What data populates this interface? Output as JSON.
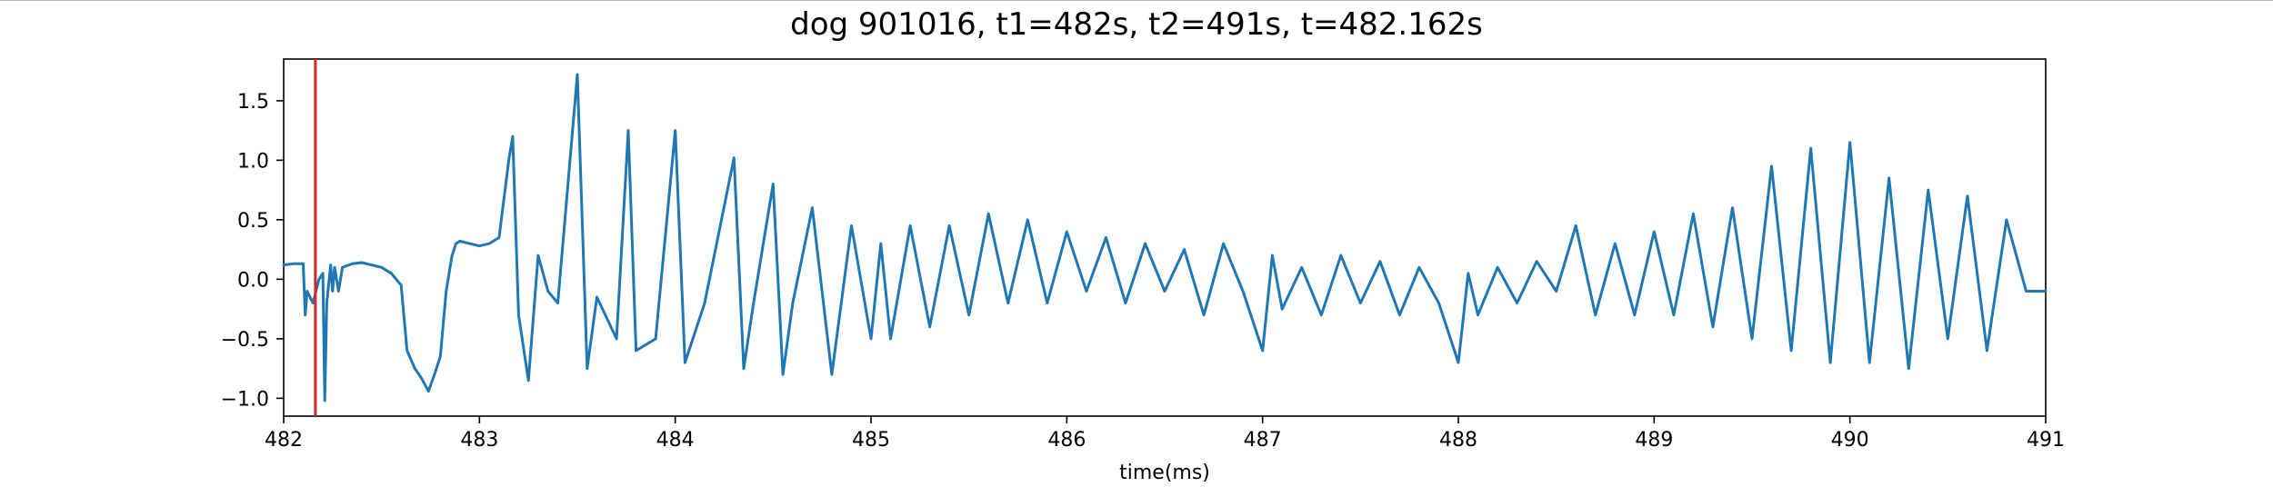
{
  "chart_data": {
    "type": "line",
    "title": "dog 901016, t1=482s, t2=491s, t=482.162s",
    "xlabel": "time(ms)",
    "ylabel": "",
    "xlim": [
      482,
      491
    ],
    "ylim": [
      -1.15,
      1.85
    ],
    "grid": false,
    "x_ticks": [
      482,
      483,
      484,
      485,
      486,
      487,
      488,
      489,
      490,
      491
    ],
    "y_ticks": [
      -1.0,
      -0.5,
      0.0,
      0.5,
      1.0,
      1.5
    ],
    "x_tick_labels": [
      "482",
      "483",
      "484",
      "485",
      "486",
      "487",
      "488",
      "489",
      "490",
      "491"
    ],
    "y_tick_labels": [
      "−1.0",
      "−0.5",
      "0.0",
      "0.5",
      "1.0",
      "1.5"
    ],
    "marker_line": {
      "x": 482.162,
      "color": "#d62728"
    },
    "series": [
      {
        "color": "#1f77b4",
        "x": [
          482.0,
          482.05,
          482.1,
          482.11,
          482.12,
          482.15,
          482.18,
          482.2,
          482.21,
          482.22,
          482.24,
          482.25,
          482.26,
          482.28,
          482.3,
          482.35,
          482.4,
          482.5,
          482.55,
          482.6,
          482.63,
          482.67,
          482.7,
          482.74,
          482.77,
          482.8,
          482.83,
          482.86,
          482.88,
          482.9,
          482.95,
          483.0,
          483.05,
          483.1,
          483.15,
          483.17,
          483.2,
          483.25,
          483.3,
          483.35,
          483.4,
          483.5,
          483.55,
          483.6,
          483.7,
          483.76,
          483.8,
          483.9,
          484.0,
          484.05,
          484.15,
          484.3,
          484.35,
          484.4,
          484.5,
          484.55,
          484.6,
          484.7,
          484.8,
          484.9,
          485.0,
          485.05,
          485.1,
          485.2,
          485.3,
          485.4,
          485.5,
          485.6,
          485.7,
          485.8,
          485.9,
          486.0,
          486.1,
          486.2,
          486.3,
          486.4,
          486.5,
          486.6,
          486.7,
          486.8,
          486.9,
          487.0,
          487.05,
          487.1,
          487.2,
          487.3,
          487.4,
          487.5,
          487.6,
          487.7,
          487.8,
          487.9,
          488.0,
          488.05,
          488.1,
          488.2,
          488.3,
          488.4,
          488.5,
          488.6,
          488.7,
          488.8,
          488.9,
          489.0,
          489.1,
          489.2,
          489.3,
          489.4,
          489.5,
          489.6,
          489.7,
          489.8,
          489.9,
          490.0,
          490.1,
          490.2,
          490.3,
          490.4,
          490.5,
          490.6,
          490.7,
          490.8,
          490.9,
          491.0
        ],
        "y": [
          0.12,
          0.13,
          0.13,
          -0.3,
          -0.1,
          -0.2,
          0.0,
          0.05,
          -1.02,
          -0.2,
          0.12,
          -0.1,
          0.1,
          -0.1,
          0.1,
          0.13,
          0.14,
          0.1,
          0.05,
          -0.05,
          -0.6,
          -0.75,
          -0.82,
          -0.94,
          -0.8,
          -0.65,
          -0.1,
          0.2,
          0.3,
          0.32,
          0.3,
          0.28,
          0.3,
          0.35,
          1.0,
          1.2,
          -0.3,
          -0.85,
          0.2,
          -0.1,
          -0.2,
          1.72,
          -0.75,
          -0.15,
          -0.5,
          1.25,
          -0.6,
          -0.5,
          1.25,
          -0.7,
          -0.2,
          1.02,
          -0.75,
          -0.2,
          0.8,
          -0.8,
          -0.2,
          0.6,
          -0.8,
          0.45,
          -0.5,
          0.3,
          -0.5,
          0.45,
          -0.4,
          0.45,
          -0.3,
          0.55,
          -0.2,
          0.5,
          -0.2,
          0.4,
          -0.1,
          0.35,
          -0.2,
          0.3,
          -0.1,
          0.25,
          -0.3,
          0.3,
          -0.1,
          -0.6,
          0.2,
          -0.25,
          0.1,
          -0.3,
          0.2,
          -0.2,
          0.15,
          -0.3,
          0.1,
          -0.2,
          -0.7,
          0.05,
          -0.3,
          0.1,
          -0.2,
          0.15,
          -0.1,
          0.45,
          -0.3,
          0.3,
          -0.3,
          0.4,
          -0.3,
          0.55,
          -0.4,
          0.6,
          -0.5,
          0.95,
          -0.6,
          1.1,
          -0.7,
          1.15,
          -0.7,
          0.85,
          -0.75,
          0.75,
          -0.5,
          0.7,
          -0.6,
          0.5,
          -0.1,
          -0.1
        ]
      }
    ]
  }
}
